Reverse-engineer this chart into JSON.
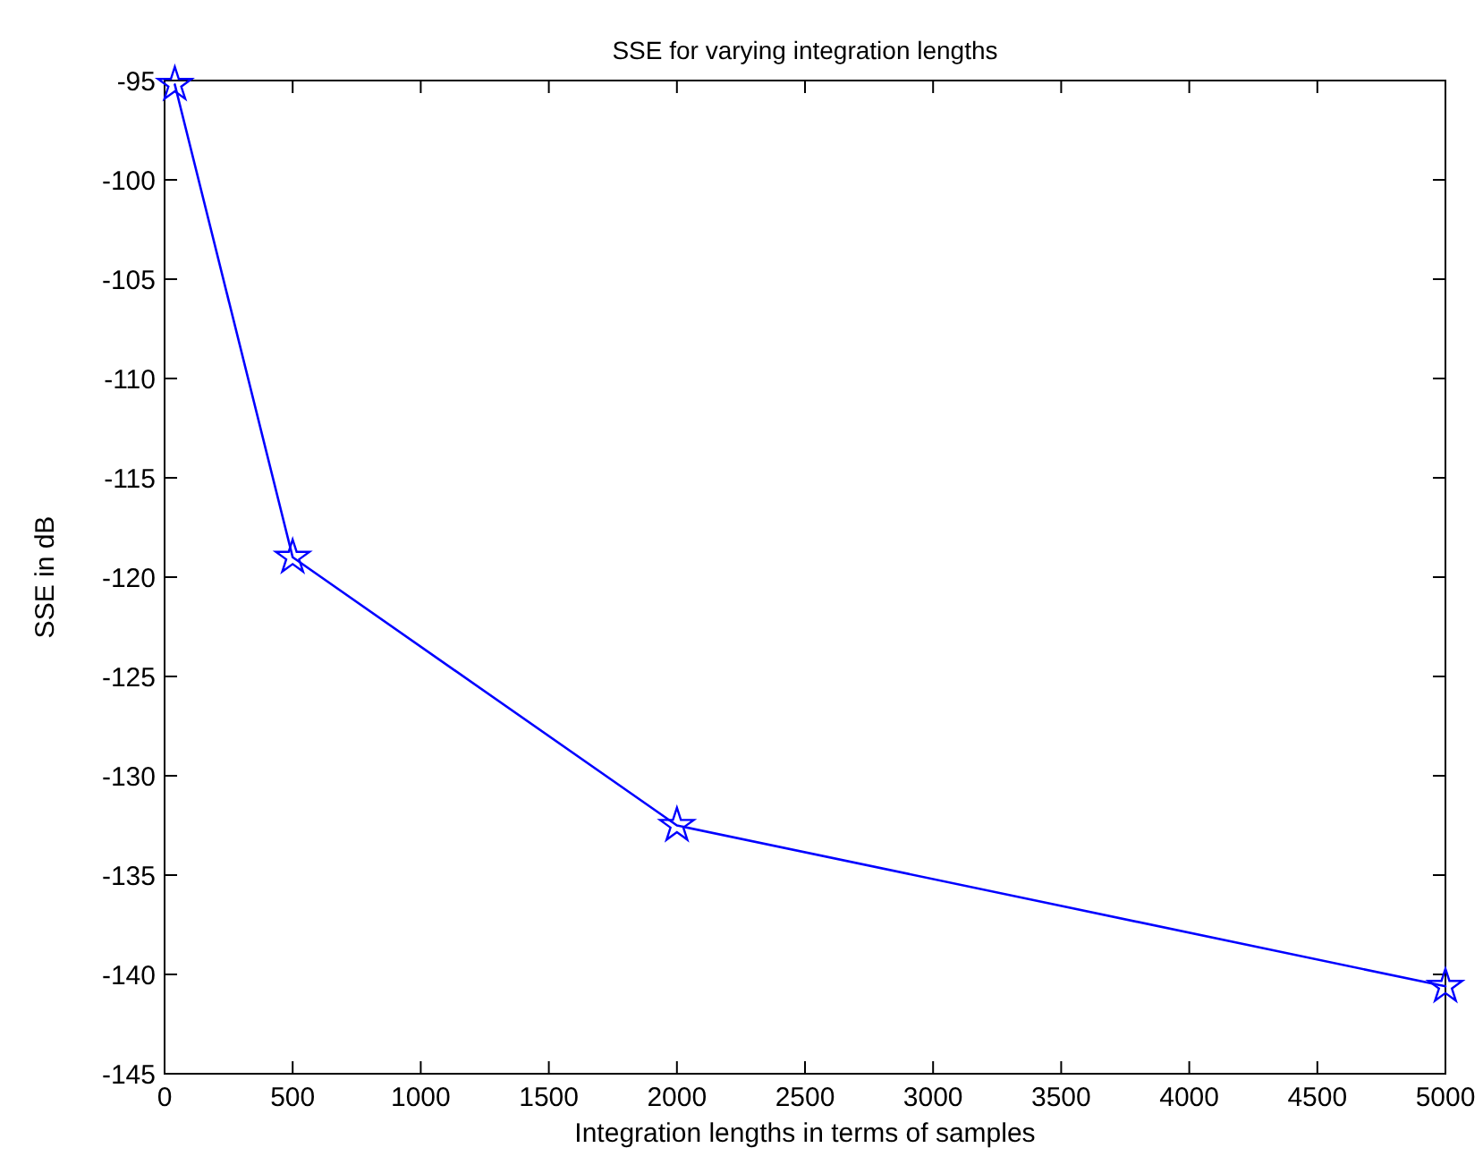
{
  "chart_data": {
    "type": "line",
    "title": "SSE for varying integration lengths",
    "xlabel": "Integration lengths in terms of samples",
    "ylabel": "SSE in dB",
    "x": [
      40,
      500,
      2000,
      5000
    ],
    "series": [
      {
        "color": "#0000ff",
        "values": [
          -95.2,
          -119.0,
          -132.5,
          -140.6
        ]
      }
    ],
    "xlim": [
      0,
      5000
    ],
    "xticks": [
      0,
      500,
      1000,
      1500,
      2000,
      2500,
      3000,
      3500,
      4000,
      4500,
      5000
    ],
    "ylim": [
      -145,
      -95
    ],
    "yticks": [
      -145,
      -140,
      -135,
      -130,
      -125,
      -120,
      -115,
      -110,
      -105,
      -100,
      -95
    ],
    "marker": "star",
    "line_style": "solid"
  }
}
